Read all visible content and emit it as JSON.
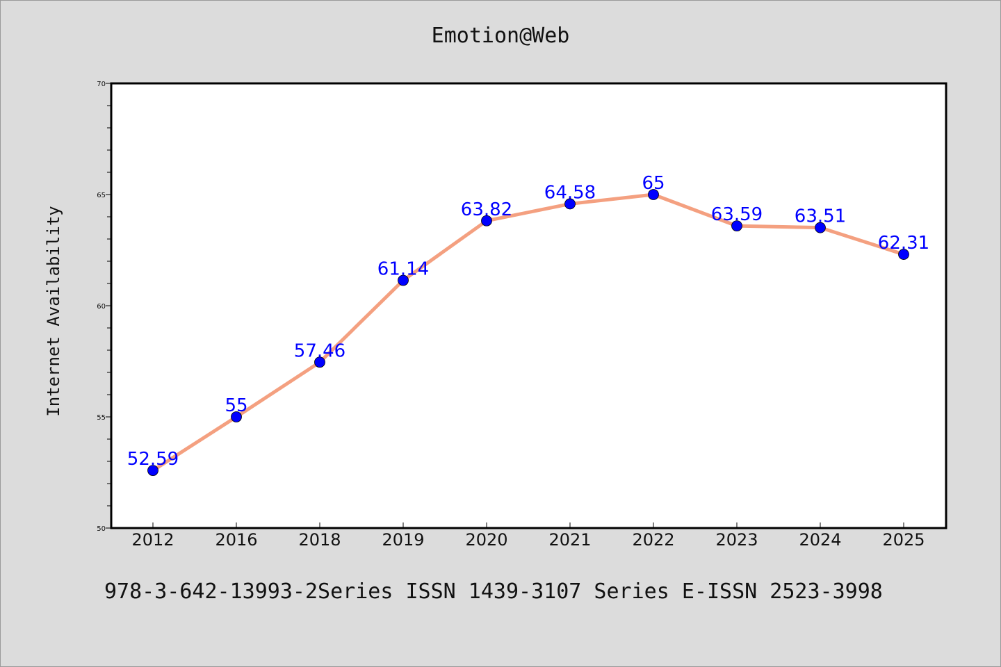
{
  "chart_data": {
    "type": "line",
    "title": "Emotion@Web",
    "xlabel": "",
    "ylabel": "Internet Availability",
    "categories": [
      "2012",
      "2016",
      "2018",
      "2019",
      "2020",
      "2021",
      "2022",
      "2023",
      "2024",
      "2025"
    ],
    "values": [
      52.59,
      55,
      57.46,
      61.14,
      63.82,
      64.58,
      65,
      63.59,
      63.51,
      62.31
    ],
    "data_labels": [
      "52.59",
      "55",
      "57.46",
      "61.14",
      "63.82",
      "64.58",
      "65",
      "63.59",
      "63.51",
      "62.31"
    ],
    "ylim": [
      50,
      70
    ],
    "yticks": [
      50,
      55,
      60,
      65,
      70
    ],
    "grid": false,
    "line_color": "#f4a080",
    "marker_color": "#0000ff",
    "label_color": "#0000ff",
    "background_color": "#dcdcdc",
    "plot_background": "#ffffff"
  },
  "caption": "978-3-642-13993-2Series ISSN 1439-3107 Series E-ISSN 2523-3998"
}
